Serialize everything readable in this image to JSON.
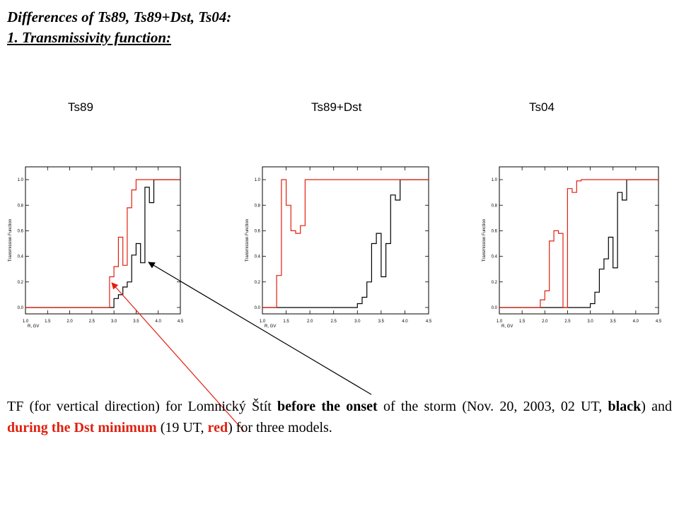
{
  "heading": {
    "line1": "Differences of Ts89, Ts89+Dst, Ts04:",
    "line2": "1. Transmissivity function:"
  },
  "caption": {
    "p1": "TF (for vertical direction) for Lomnický Štít ",
    "b1": "before the onset",
    "p2": " of the storm (Nov. 20, 2003, 02 UT, ",
    "b2": "black",
    "p3": ") and ",
    "r1": "during the Dst minimum",
    "p4": " (19 UT, ",
    "r2": "red",
    "p5": ") for three models."
  },
  "colors": {
    "before_onset": "#000000",
    "dst_minimum": "#e02010",
    "annotation_arrow_black": "#000000",
    "annotation_arrow_red": "#e02010"
  },
  "chart_data": [
    {
      "type": "line",
      "title": "Ts89",
      "xlabel": "R, GV",
      "ylabel": "Transmission Function",
      "xlim": [
        1.0,
        4.5
      ],
      "ylim": [
        -0.05,
        1.1
      ],
      "xticks": [
        "1.0",
        "1.5",
        "2.0",
        "2.5",
        "3.0",
        "3.5",
        "4.0",
        "4.5"
      ],
      "yticks": [
        "0.0",
        "0.2",
        "0.4",
        "0.6",
        "0.8",
        "1.0"
      ],
      "step": true,
      "series": [
        {
          "key": "before_onset",
          "x": [
            1.0,
            2.9,
            3.0,
            3.1,
            3.2,
            3.3,
            3.4,
            3.5,
            3.6,
            3.7,
            3.8,
            3.9,
            4.5
          ],
          "values": [
            0.0,
            0.0,
            0.07,
            0.1,
            0.16,
            0.2,
            0.41,
            0.5,
            0.35,
            0.94,
            0.82,
            1.0,
            1.0
          ]
        },
        {
          "key": "dst_minimum",
          "x": [
            1.0,
            2.8,
            2.9,
            3.0,
            3.1,
            3.2,
            3.3,
            3.4,
            3.5,
            4.5
          ],
          "values": [
            0.0,
            0.0,
            0.24,
            0.32,
            0.55,
            0.33,
            0.78,
            0.92,
            1.0,
            1.0
          ]
        }
      ]
    },
    {
      "type": "line",
      "title": "Ts89+Dst",
      "xlabel": "R, GV",
      "ylabel": "Transmission Function",
      "xlim": [
        1.0,
        4.5
      ],
      "ylim": [
        -0.05,
        1.1
      ],
      "xticks": [
        "1.0",
        "1.5",
        "2.0",
        "2.5",
        "3.0",
        "3.5",
        "4.0",
        "4.5"
      ],
      "yticks": [
        "0.0",
        "0.2",
        "0.4",
        "0.6",
        "0.8",
        "1.0"
      ],
      "step": true,
      "series": [
        {
          "key": "before_onset",
          "x": [
            1.0,
            2.9,
            3.0,
            3.1,
            3.2,
            3.3,
            3.4,
            3.5,
            3.6,
            3.7,
            3.8,
            3.9,
            4.5
          ],
          "values": [
            0.0,
            0.0,
            0.03,
            0.08,
            0.2,
            0.5,
            0.58,
            0.24,
            0.5,
            0.88,
            0.84,
            1.0,
            1.0
          ]
        },
        {
          "key": "dst_minimum",
          "x": [
            1.0,
            1.3,
            1.4,
            1.5,
            1.6,
            1.7,
            1.8,
            1.9,
            4.5
          ],
          "values": [
            0.0,
            0.25,
            1.0,
            0.8,
            0.6,
            0.58,
            0.64,
            1.0,
            1.0
          ]
        }
      ]
    },
    {
      "type": "line",
      "title": "Ts04",
      "xlabel": "R, GV",
      "ylabel": "Transmission Function",
      "xlim": [
        1.0,
        4.5
      ],
      "ylim": [
        -0.05,
        1.1
      ],
      "xticks": [
        "1.0",
        "1.5",
        "2.0",
        "2.5",
        "3.0",
        "3.5",
        "4.0",
        "4.5"
      ],
      "yticks": [
        "0.0",
        "0.2",
        "0.4",
        "0.6",
        "0.8",
        "1.0"
      ],
      "step": true,
      "series": [
        {
          "key": "before_onset",
          "x": [
            1.0,
            2.8,
            3.0,
            3.1,
            3.2,
            3.3,
            3.4,
            3.5,
            3.6,
            3.7,
            3.8,
            3.9,
            4.5
          ],
          "values": [
            0.0,
            0.0,
            0.03,
            0.12,
            0.3,
            0.38,
            0.55,
            0.31,
            0.9,
            0.84,
            1.0,
            1.0,
            1.0
          ]
        },
        {
          "key": "dst_minimum",
          "x": [
            1.0,
            1.9,
            2.0,
            2.1,
            2.2,
            2.3,
            2.4,
            2.5,
            2.6,
            2.7,
            2.8,
            4.5
          ],
          "values": [
            0.0,
            0.06,
            0.13,
            0.52,
            0.6,
            0.58,
            0.0,
            0.93,
            0.9,
            0.99,
            1.0,
            1.0
          ]
        }
      ]
    }
  ]
}
